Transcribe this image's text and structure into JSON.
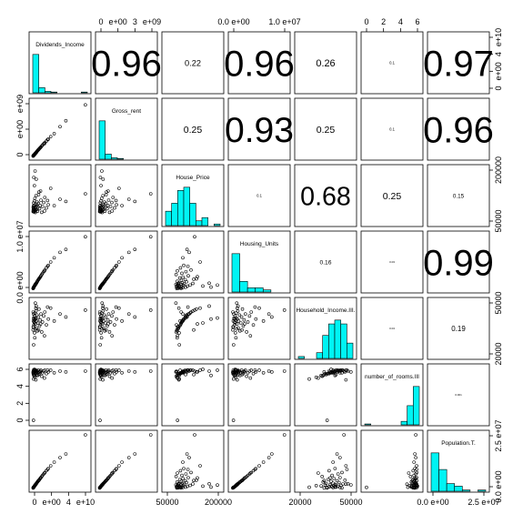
{
  "chart_data": {
    "type": "scatter",
    "variables": [
      "Dividends_Income",
      "Gross_rent",
      "House_Price",
      "Housing_Units",
      "Household_Income.III.",
      "number_of_rooms.III",
      "Population.T."
    ],
    "ranges": [
      [
        0,
        14000000000.0
      ],
      [
        0,
        5500000000.0
      ],
      [
        0,
        300000
      ],
      [
        0,
        13000000.0
      ],
      [
        10000,
        65000
      ],
      [
        0,
        6.2
      ],
      [
        0,
        30000000.0
      ]
    ],
    "axis_ticks": {
      "top": [
        {
          "col": 1,
          "labels": [
            "0",
            "e+00",
            "3",
            "e+09"
          ]
        },
        {
          "col": 3,
          "labels": [
            "0.0 e+00",
            "1.0 e+07"
          ]
        },
        {
          "col": 5,
          "labels": [
            "0",
            "2",
            "4",
            "6"
          ]
        }
      ],
      "bottom": [
        {
          "col": 0,
          "labels": [
            "0",
            "e+00",
            "4",
            "e+10"
          ]
        },
        {
          "col": 2,
          "labels": [
            "50000",
            "200000"
          ]
        },
        {
          "col": 4,
          "labels": [
            "20000",
            "50000"
          ]
        },
        {
          "col": 6,
          "labels": [
            "0.0 e+00",
            "2.5 e+07"
          ]
        }
      ],
      "left": [
        {
          "row": 1,
          "labels": [
            "0",
            "e+00",
            "e+09"
          ]
        },
        {
          "row": 3,
          "labels": [
            "0.0 e+00",
            "1.0 e+07"
          ]
        },
        {
          "row": 5,
          "labels": [
            "0",
            "2",
            "4",
            "6"
          ]
        }
      ],
      "right": [
        {
          "row": 0,
          "labels": [
            "0",
            "e+00",
            "4",
            "e+10"
          ]
        },
        {
          "row": 2,
          "labels": [
            "50000",
            "200000"
          ]
        },
        {
          "row": 4,
          "labels": [
            "20000",
            "50000"
          ]
        },
        {
          "row": 6,
          "labels": [
            "0.0 e+00",
            "2.5 e+07"
          ]
        }
      ]
    },
    "correlations": [
      {
        "row": 0,
        "col": 1,
        "label": "0.96"
      },
      {
        "row": 0,
        "col": 2,
        "label": "0.22"
      },
      {
        "row": 0,
        "col": 3,
        "label": "0.96"
      },
      {
        "row": 0,
        "col": 4,
        "label": "0.26"
      },
      {
        "row": 0,
        "col": 5,
        "label": "0.1"
      },
      {
        "row": 0,
        "col": 6,
        "label": "0.97"
      },
      {
        "row": 1,
        "col": 2,
        "label": "0.25"
      },
      {
        "row": 1,
        "col": 3,
        "label": "0.93"
      },
      {
        "row": 1,
        "col": 4,
        "label": "0.25"
      },
      {
        "row": 1,
        "col": 5,
        "label": "0.1"
      },
      {
        "row": 1,
        "col": 6,
        "label": "0.96"
      },
      {
        "row": 2,
        "col": 3,
        "label": "0.1"
      },
      {
        "row": 2,
        "col": 4,
        "label": "0.68"
      },
      {
        "row": 2,
        "col": 5,
        "label": "0.25"
      },
      {
        "row": 2,
        "col": 6,
        "label": "0.15"
      },
      {
        "row": 3,
        "col": 4,
        "label": "0.16"
      },
      {
        "row": 3,
        "col": 5,
        "label": "0.03"
      },
      {
        "row": 3,
        "col": 6,
        "label": "0.99"
      },
      {
        "row": 4,
        "col": 5,
        "label": "0.04"
      },
      {
        "row": 4,
        "col": 6,
        "label": "0.19"
      },
      {
        "row": 5,
        "col": 6,
        "label": "0.001"
      }
    ],
    "histograms": [
      {
        "var": 0,
        "counts": [
          52,
          7,
          2,
          1,
          0,
          0,
          0,
          0,
          1
        ]
      },
      {
        "var": 1,
        "counts": [
          52,
          7,
          2,
          1,
          0,
          0,
          0,
          0,
          0
        ]
      },
      {
        "var": 2,
        "counts": [
          9,
          14,
          22,
          24,
          14,
          3,
          5,
          0,
          1
        ]
      },
      {
        "var": 3,
        "counts": [
          36,
          10,
          4,
          4,
          2,
          0,
          0
        ]
      },
      {
        "var": 4,
        "counts": [
          1,
          0,
          0,
          3,
          12,
          18,
          20,
          18,
          8
        ]
      },
      {
        "var": 5,
        "counts": [
          1,
          0,
          0,
          0,
          0,
          0,
          4,
          22,
          44
        ]
      },
      {
        "var": 6,
        "counts": [
          30,
          17,
          6,
          4,
          1,
          0,
          1
        ]
      }
    ],
    "points": [
      [
        100000000.0,
        50000000.0,
        62000,
        200000.0,
        36000,
        5.7,
        300000.0
      ],
      [
        130000000.0,
        60000000.0,
        70000,
        260000.0,
        39000,
        5.5,
        400000.0
      ],
      [
        160000000.0,
        80000000.0,
        80000,
        320000.0,
        45000,
        5.9,
        500000.0
      ],
      [
        200000000.0,
        100000000.0,
        95000,
        400000.0,
        52000,
        5.6,
        600000.0
      ],
      [
        250000000.0,
        120000000.0,
        110000,
        500000.0,
        48000,
        5.4,
        750000.0
      ],
      [
        300000000.0,
        140000000.0,
        60000,
        580000.0,
        41000,
        5.8,
        900000.0
      ],
      [
        350000000.0,
        160000000.0,
        88000,
        660000.0,
        44000,
        5.6,
        1000000.0
      ],
      [
        400000000.0,
        180000000.0,
        120000,
        750000.0,
        50000,
        5.9,
        1200000.0
      ],
      [
        450000000.0,
        200000000.0,
        75000,
        820000.0,
        33000,
        5.3,
        1400000.0
      ],
      [
        500000000.0,
        230000000.0,
        98000,
        900000.0,
        46000,
        5.7,
        1500000.0
      ],
      [
        560000000.0,
        260000000.0,
        135000,
        1000000.0,
        53000,
        5.9,
        1700000.0
      ],
      [
        620000000.0,
        290000000.0,
        68000,
        1100000.0,
        37000,
        5.5,
        1900000.0
      ],
      [
        700000000.0,
        320000000.0,
        84000,
        1200000.0,
        42000,
        5.6,
        2100000.0
      ],
      [
        780000000.0,
        350000000.0,
        102000,
        1300000.0,
        47000,
        5.8,
        2300000.0
      ],
      [
        850000000.0,
        390000000.0,
        150000,
        1400000.0,
        55000,
        5.9,
        2500000.0
      ],
      [
        930000000.0,
        430000000.0,
        72000,
        1500000.0,
        38000,
        5.4,
        2800000.0
      ],
      [
        1000000000.0,
        470000000.0,
        92000,
        1600000.0,
        45000,
        5.7,
        3000000.0
      ],
      [
        1100000000.0,
        520000000.0,
        115000,
        1800000.0,
        51000,
        5.8,
        3300000.0
      ],
      [
        1200000000.0,
        570000000.0,
        64000,
        1900000.0,
        35000,
        5.3,
        3600000.0
      ],
      [
        1300000000.0,
        620000000.0,
        87000,
        2100000.0,
        43000,
        5.6,
        3900000.0
      ],
      [
        1450000000.0,
        680000000.0,
        108000,
        2300000.0,
        49000,
        5.9,
        4300000.0
      ],
      [
        1600000000.0,
        740000000.0,
        170000,
        2500000.0,
        57000,
        5.7,
        4600000.0
      ],
      [
        1750000000.0,
        810000000.0,
        78000,
        2700000.0,
        40000,
        5.5,
        5000000.0
      ],
      [
        1900000000.0,
        880000000.0,
        96000,
        2900000.0,
        46000,
        5.8,
        5500000.0
      ],
      [
        2100000000.0,
        960000000.0,
        125000,
        3200000.0,
        52000,
        5.9,
        6000000.0
      ],
      [
        2300000000.0,
        1050000000.0,
        58000,
        3500000.0,
        34000,
        5.2,
        6600000.0
      ],
      [
        2500000000.0,
        1150000000.0,
        90000,
        3800000.0,
        44000,
        5.6,
        7200000.0
      ],
      [
        2800000000.0,
        1280000000.0,
        112000,
        4200000.0,
        50000,
        5.8,
        8000000.0
      ],
      [
        3100000000.0,
        1400000000.0,
        140000,
        4600000.0,
        54000,
        5.9,
        8800000.0
      ],
      [
        3500000000.0,
        1550000000.0,
        82000,
        5100000.0,
        41000,
        5.5,
        9800000.0
      ],
      [
        4000000000.0,
        1750000000.0,
        100000,
        5700000.0,
        47000,
        5.7,
        11000000.0
      ],
      [
        4600000000.0,
        2000000000.0,
        190000,
        6500000.0,
        58000,
        5.9,
        12500000.0
      ],
      [
        5500000000.0,
        2300000000.0,
        95000,
        7500000.0,
        45000,
        5.6,
        14500000.0
      ],
      [
        7000000000.0,
        3000000000.0,
        130000,
        8800000.0,
        52000,
        5.8,
        17000000.0
      ],
      [
        8500000000.0,
        3600000000.0,
        118000,
        9500000.0,
        49000,
        5.7,
        19000000.0
      ],
      [
        13500000000.0,
        5200000000.0,
        160000,
        12500000.0,
        56000,
        5.8,
        29500000.0
      ],
      [
        600000000.0,
        270000000.0,
        285000,
        1000000.0,
        48000,
        5.9,
        1900000.0
      ],
      [
        220000000.0,
        110000000.0,
        76000,
        390000.0,
        21000,
        4.9,
        700000.0
      ],
      [
        180000000.0,
        90000000.0,
        66000,
        350000.0,
        39000,
        0.2,
        650000.0
      ],
      [
        900000000.0,
        400000000.0,
        240000,
        1450000.0,
        60000,
        5.8,
        2600000.0
      ],
      [
        3000000000.0,
        1300000000.0,
        65000,
        4400000.0,
        30000,
        5.0,
        8500000.0
      ],
      [
        1500000000.0,
        700000000.0,
        155000,
        2400000.0,
        36000,
        5.4,
        4400000.0
      ],
      [
        650000000.0,
        300000000.0,
        57000,
        1150000.0,
        63000,
        5.7,
        2000000.0
      ],
      [
        420000000.0,
        190000000.0,
        205000,
        780000.0,
        43000,
        6.0,
        1300000.0
      ],
      [
        800000000.0,
        370000000.0,
        73000,
        1250000.0,
        58000,
        4.8,
        2400000.0
      ],
      [
        270000000.0,
        130000000.0,
        250000,
        530000.0,
        47000,
        5.3,
        800000.0
      ],
      [
        120000000.0,
        55000000.0,
        86000,
        230000.0,
        54000,
        5.6,
        350000.0
      ],
      [
        530000000.0,
        240000000.0,
        64000,
        950000.0,
        28000,
        5.1,
        1600000.0
      ],
      [
        3800000000.0,
        1700000000.0,
        123000,
        5500000.0,
        59000,
        5.9,
        10500000.0
      ],
      [
        2000000000.0,
        900000000.0,
        175000,
        3000000.0,
        42000,
        5.7,
        5800000.0
      ]
    ]
  }
}
